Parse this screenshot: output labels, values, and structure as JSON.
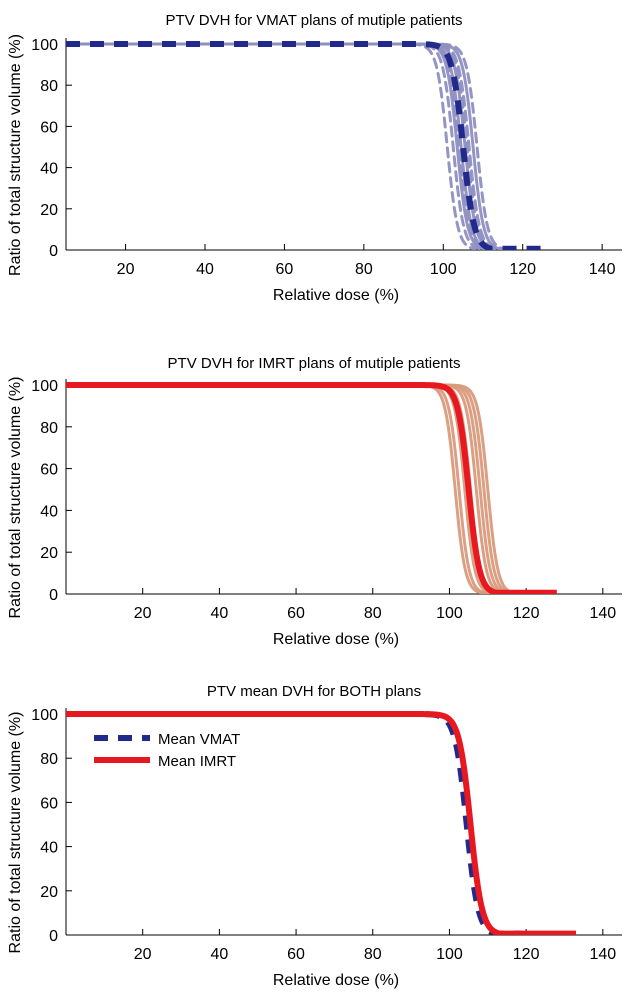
{
  "chart_data": [
    {
      "type": "line",
      "title": "PTV DVH for VMAT plans of mutiple patients",
      "xlabel": "Relative dose (%)",
      "ylabel": "Ratio of total structure volume (%)",
      "xlim": [
        5,
        145
      ],
      "ylim": [
        0,
        100
      ],
      "xticks": [
        "20",
        "40",
        "60",
        "80",
        "100",
        "120",
        "140"
      ],
      "yticks": [
        "0",
        "20",
        "40",
        "60",
        "80",
        "100"
      ],
      "grid": false,
      "colors": {
        "patients": "#8f8fc2",
        "mean": "#1f2a8a"
      },
      "patient_curves": [
        {
          "d50": 101,
          "end": 108,
          "dashed": true
        },
        {
          "d50": 102.5,
          "end": 110,
          "dashed": true
        },
        {
          "d50": 103.5,
          "end": 111,
          "dashed": false
        },
        {
          "d50": 104.5,
          "end": 112,
          "dashed": false
        },
        {
          "d50": 105.5,
          "end": 113,
          "dashed": false
        },
        {
          "d50": 106.5,
          "end": 114,
          "dashed": true
        },
        {
          "d50": 107.5,
          "end": 115,
          "dashed": false
        },
        {
          "d50": 108.5,
          "end": 116,
          "dashed": true
        },
        {
          "d50": 104,
          "end": 112,
          "dashed": true
        },
        {
          "d50": 106,
          "end": 113,
          "dashed": true
        }
      ],
      "mean_curve": {
        "d50": 105,
        "end": 127,
        "dashed": true
      }
    },
    {
      "type": "line",
      "title": "PTV DVH for IMRT plans of mutiple patients",
      "xlabel": "Relative dose (%)",
      "ylabel": "Ratio of total structure volume (%)",
      "xlim": [
        0,
        145
      ],
      "ylim": [
        0,
        100
      ],
      "xticks": [
        "20",
        "40",
        "60",
        "80",
        "100",
        "120",
        "140"
      ],
      "yticks": [
        "0",
        "20",
        "40",
        "60",
        "80",
        "100"
      ],
      "grid": false,
      "colors": {
        "patients": "#d99b7c",
        "mean": "#e81820"
      },
      "patient_curves": [
        {
          "d50": 101.5,
          "end": 112,
          "dashed": false
        },
        {
          "d50": 102.5,
          "end": 114,
          "dashed": false
        },
        {
          "d50": 104,
          "end": 116,
          "dashed": false
        },
        {
          "d50": 105.5,
          "end": 117,
          "dashed": false
        },
        {
          "d50": 107,
          "end": 118,
          "dashed": false
        },
        {
          "d50": 108,
          "end": 119,
          "dashed": false
        },
        {
          "d50": 109,
          "end": 120,
          "dashed": false
        },
        {
          "d50": 110,
          "end": 121,
          "dashed": false
        }
      ],
      "mean_curve": {
        "d50": 105,
        "end": 128,
        "dashed": false
      }
    },
    {
      "type": "line",
      "title": "PTV mean DVH for BOTH plans",
      "xlabel": "Relative dose (%)",
      "ylabel": "Ratio of total structure volume (%)",
      "xlim": [
        0,
        145
      ],
      "ylim": [
        0,
        100
      ],
      "xticks": [
        "20",
        "40",
        "60",
        "80",
        "100",
        "120",
        "140"
      ],
      "yticks": [
        "0",
        "20",
        "40",
        "60",
        "80",
        "100"
      ],
      "grid": false,
      "legend_position": "top-left",
      "series": [
        {
          "name": "Mean VMAT",
          "color": "#1f2a8a",
          "dashed": true,
          "d50": 104.5,
          "end": 119
        },
        {
          "name": "Mean IMRT",
          "color": "#e81820",
          "dashed": false,
          "d50": 105.5,
          "end": 133
        }
      ]
    }
  ]
}
